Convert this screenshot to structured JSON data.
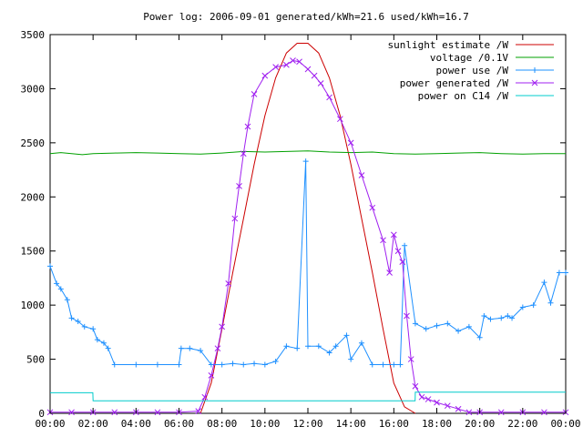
{
  "chart_data": {
    "type": "line",
    "title": "Power log: 2006-09-01 generated/kWh=21.6 used/kWh=16.7",
    "xlabel": "",
    "ylabel": "",
    "x_unit": "hour of day",
    "xlim": [
      0,
      24
    ],
    "ylim": [
      0,
      3500
    ],
    "grid": false,
    "legend_position": "top-right",
    "x_ticks": [
      "00:00",
      "02:00",
      "04:00",
      "06:00",
      "08:00",
      "10:00",
      "12:00",
      "14:00",
      "16:00",
      "18:00",
      "20:00",
      "22:00",
      "00:00"
    ],
    "y_ticks": [
      "0",
      "500",
      "1000",
      "1500",
      "2000",
      "2500",
      "3000",
      "3500"
    ],
    "series": [
      {
        "name": "sunlight estimate /W",
        "color": "#cc0000",
        "marker": "none",
        "x": [
          7.0,
          7.5,
          8.0,
          8.5,
          9.0,
          9.5,
          10.0,
          10.5,
          11.0,
          11.5,
          12.0,
          12.5,
          13.0,
          13.5,
          14.0,
          14.5,
          15.0,
          15.5,
          16.0,
          16.5,
          17.0
        ],
        "values": [
          0,
          280,
          780,
          1300,
          1800,
          2300,
          2750,
          3100,
          3330,
          3420,
          3420,
          3330,
          3100,
          2750,
          2300,
          1800,
          1300,
          780,
          280,
          60,
          0
        ]
      },
      {
        "name": "voltage /0.1V",
        "color": "#00a000",
        "marker": "none",
        "x": [
          0,
          0.5,
          1,
          1.5,
          2,
          3,
          4,
          5,
          6,
          7,
          8,
          9,
          10,
          11,
          12,
          13,
          14,
          15,
          16,
          17,
          18,
          19,
          20,
          21,
          22,
          23,
          24
        ],
        "values": [
          2400,
          2410,
          2400,
          2390,
          2400,
          2405,
          2410,
          2405,
          2400,
          2395,
          2405,
          2420,
          2415,
          2420,
          2425,
          2415,
          2410,
          2415,
          2400,
          2395,
          2400,
          2405,
          2410,
          2400,
          2395,
          2400,
          2400
        ]
      },
      {
        "name": "power use /W",
        "color": "#1e90ff",
        "marker": "plus",
        "x": [
          0,
          0.3,
          0.5,
          0.8,
          1,
          1.3,
          1.6,
          2,
          2.2,
          2.5,
          2.7,
          3,
          4,
          5,
          6,
          6.1,
          6.5,
          7,
          7.5,
          8,
          8.5,
          9,
          9.5,
          10,
          10.5,
          11,
          11.5,
          11.9,
          12,
          12.5,
          13,
          13.3,
          13.8,
          14,
          14.5,
          15,
          15.5,
          16,
          16.3,
          16.5,
          17,
          17.5,
          18,
          18.5,
          19,
          19.5,
          20,
          20.2,
          20.5,
          21,
          21.3,
          21.5,
          22,
          22.5,
          23,
          23.3,
          23.7,
          24
        ],
        "values": [
          1360,
          1200,
          1150,
          1050,
          880,
          850,
          800,
          780,
          680,
          650,
          600,
          450,
          450,
          450,
          450,
          600,
          600,
          580,
          450,
          450,
          460,
          450,
          460,
          450,
          480,
          620,
          600,
          2330,
          620,
          620,
          560,
          620,
          720,
          500,
          650,
          450,
          450,
          450,
          450,
          1550,
          830,
          780,
          810,
          830,
          760,
          800,
          700,
          900,
          870,
          880,
          900,
          880,
          980,
          1000,
          1210,
          1020,
          1300,
          1300
        ]
      },
      {
        "name": "power generated /W",
        "color": "#a020f0",
        "marker": "x",
        "x": [
          0,
          1,
          2,
          3,
          4,
          5,
          6,
          6.9,
          7.2,
          7.5,
          7.8,
          8,
          8.3,
          8.6,
          8.8,
          9,
          9.2,
          9.5,
          10,
          10.5,
          11,
          11.3,
          11.6,
          12,
          12.3,
          12.6,
          13,
          13.5,
          14,
          14.5,
          15,
          15.5,
          15.8,
          16,
          16.2,
          16.4,
          16.6,
          16.8,
          17,
          17.3,
          17.6,
          18,
          18.5,
          19,
          19.5,
          20,
          21,
          22,
          23,
          24
        ],
        "values": [
          10,
          10,
          10,
          10,
          10,
          10,
          10,
          20,
          150,
          350,
          600,
          800,
          1200,
          1800,
          2100,
          2400,
          2650,
          2950,
          3120,
          3200,
          3220,
          3260,
          3250,
          3180,
          3120,
          3050,
          2920,
          2720,
          2500,
          2200,
          1900,
          1600,
          1300,
          1650,
          1500,
          1400,
          900,
          500,
          250,
          150,
          130,
          100,
          70,
          40,
          10,
          10,
          10,
          10,
          10,
          10
        ]
      },
      {
        "name": "power on C14 /W",
        "color": "#00cccc",
        "marker": "none",
        "x": [
          0,
          1.99,
          2.0,
          16.99,
          17.0,
          24
        ],
        "values": [
          190,
          190,
          115,
          115,
          195,
          195
        ]
      }
    ]
  }
}
